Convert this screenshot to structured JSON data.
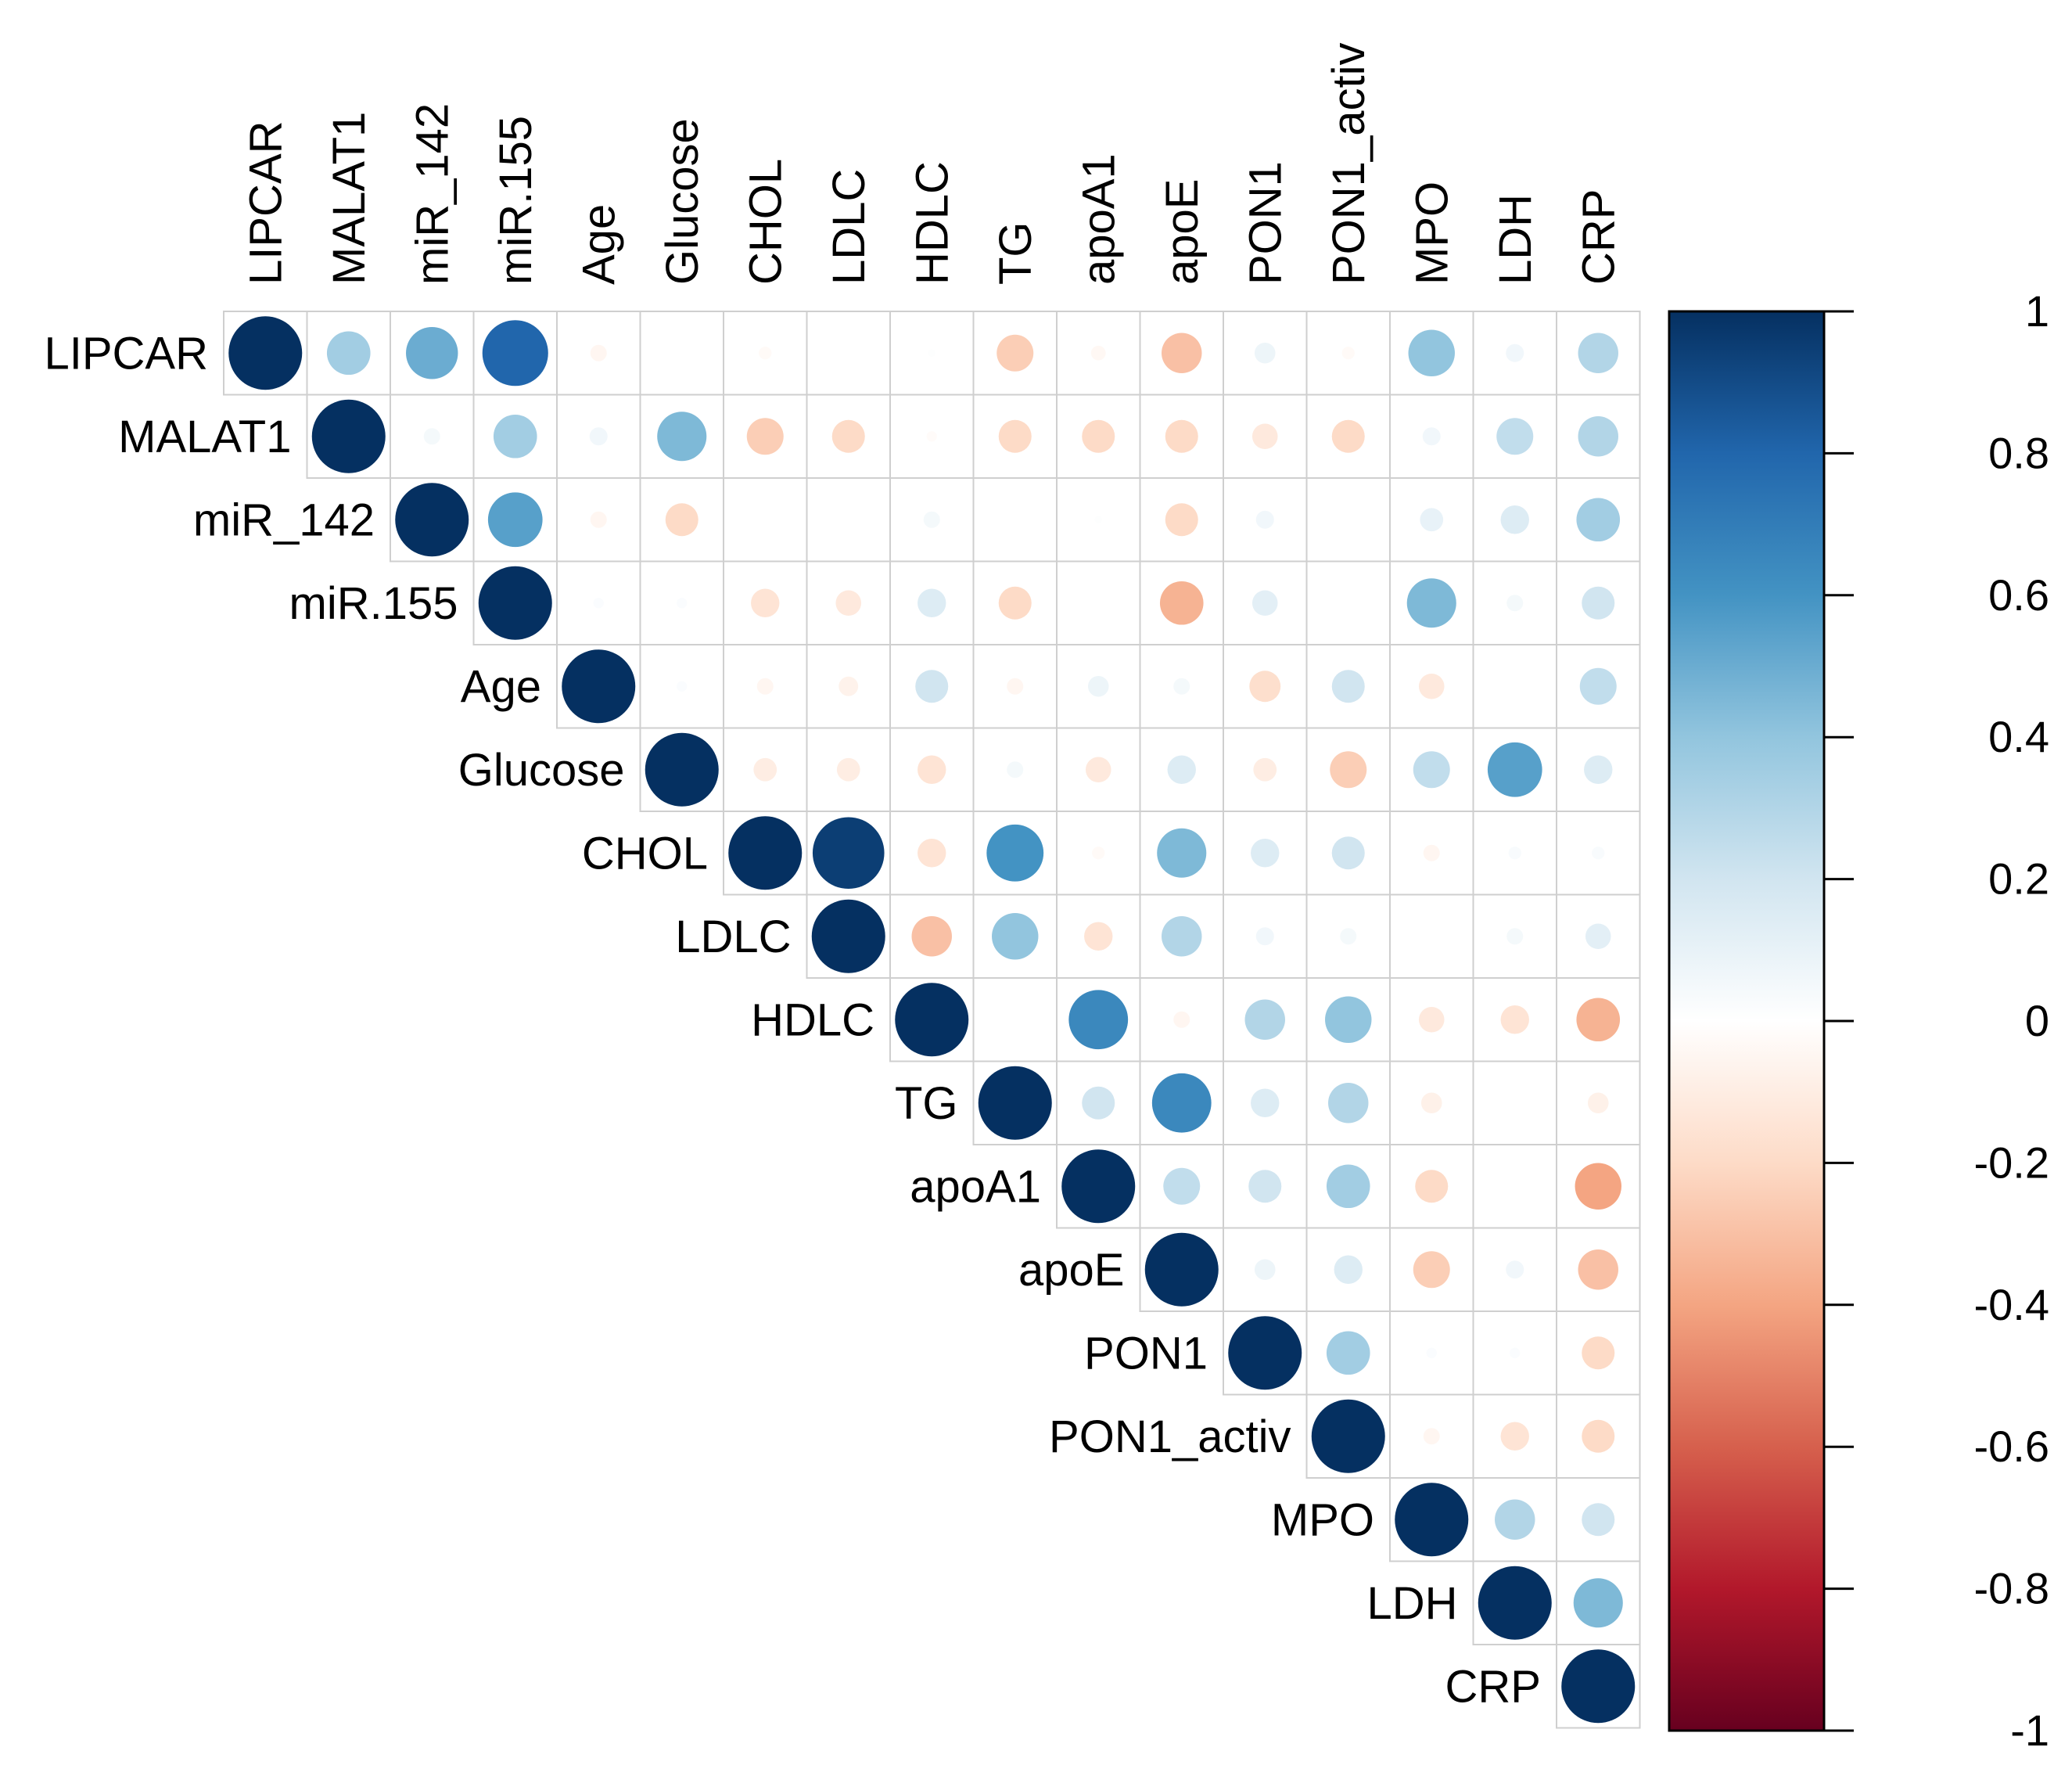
{
  "chart_data": {
    "type": "heatmap",
    "subtype": "correlation-circles-upper-triangle",
    "title": "",
    "variables": [
      "LIPCAR",
      "MALAT1",
      "miR_142",
      "miR.155",
      "Age",
      "Glucose",
      "CHOL",
      "LDLC",
      "HDLC",
      "TG",
      "apoA1",
      "apoE",
      "PON1",
      "PON1_activ",
      "MPO",
      "LDH",
      "CRP"
    ],
    "values": [
      [
        1.0,
        0.35,
        0.5,
        0.8,
        -0.05,
        0.0,
        -0.03,
        0.0,
        0.01,
        -0.25,
        -0.04,
        -0.3,
        0.08,
        -0.03,
        0.4,
        0.06,
        0.3
      ],
      [
        0.35,
        1.0,
        0.05,
        0.35,
        0.06,
        0.45,
        -0.25,
        -0.2,
        -0.02,
        -0.2,
        -0.2,
        -0.2,
        -0.12,
        -0.2,
        0.06,
        0.25,
        0.3
      ],
      [
        0.5,
        0.05,
        1.0,
        0.55,
        -0.05,
        -0.2,
        0.0,
        0.0,
        0.05,
        0.0,
        0.01,
        -0.2,
        0.06,
        0.0,
        0.1,
        0.15,
        0.35
      ],
      [
        0.8,
        0.35,
        0.55,
        1.0,
        0.02,
        0.02,
        -0.15,
        -0.12,
        0.15,
        -0.2,
        0.0,
        -0.35,
        0.12,
        0.0,
        0.45,
        0.05,
        0.2
      ],
      [
        -0.05,
        0.06,
        -0.05,
        0.02,
        1.0,
        0.02,
        -0.05,
        -0.07,
        0.2,
        -0.05,
        0.08,
        0.05,
        -0.18,
        0.2,
        -0.12,
        0.0,
        0.25
      ],
      [
        0.0,
        0.45,
        -0.2,
        0.02,
        0.02,
        1.0,
        -0.1,
        -0.1,
        -0.15,
        0.05,
        -0.12,
        0.15,
        -0.1,
        -0.25,
        0.25,
        0.55,
        0.15
      ],
      [
        -0.03,
        -0.25,
        0.0,
        -0.15,
        -0.05,
        -0.1,
        1.0,
        0.95,
        -0.15,
        0.6,
        -0.03,
        0.45,
        0.15,
        0.2,
        -0.05,
        0.03,
        0.03
      ],
      [
        0.0,
        -0.2,
        0.0,
        -0.12,
        -0.07,
        -0.1,
        0.95,
        1.0,
        -0.3,
        0.4,
        -0.15,
        0.3,
        0.06,
        0.05,
        0.0,
        0.05,
        0.12
      ],
      [
        0.01,
        -0.02,
        0.05,
        0.15,
        0.2,
        -0.15,
        -0.15,
        -0.3,
        1.0,
        0.0,
        0.65,
        -0.05,
        0.3,
        0.4,
        -0.12,
        -0.15,
        -0.35
      ],
      [
        -0.25,
        -0.2,
        0.0,
        -0.2,
        -0.05,
        0.05,
        0.6,
        0.4,
        0.0,
        1.0,
        0.2,
        0.65,
        0.15,
        0.3,
        -0.08,
        0.0,
        -0.08
      ],
      [
        -0.04,
        -0.2,
        0.01,
        0.0,
        0.08,
        -0.12,
        -0.03,
        -0.15,
        0.65,
        0.2,
        1.0,
        0.25,
        0.2,
        0.35,
        -0.2,
        0.0,
        -0.4
      ],
      [
        -0.3,
        -0.2,
        -0.2,
        -0.35,
        0.05,
        0.15,
        0.45,
        0.3,
        -0.05,
        0.65,
        0.25,
        1.0,
        0.08,
        0.15,
        -0.25,
        0.06,
        -0.3
      ],
      [
        0.08,
        -0.12,
        0.06,
        0.12,
        -0.18,
        -0.1,
        0.15,
        0.06,
        0.3,
        0.15,
        0.2,
        0.08,
        1.0,
        0.35,
        0.02,
        0.02,
        -0.2
      ],
      [
        -0.03,
        -0.2,
        0.0,
        0.0,
        0.2,
        -0.25,
        0.2,
        0.05,
        0.4,
        0.3,
        0.35,
        0.15,
        0.35,
        1.0,
        -0.05,
        -0.15,
        -0.2
      ],
      [
        0.4,
        0.06,
        0.1,
        0.45,
        -0.12,
        0.25,
        -0.05,
        0.0,
        -0.12,
        -0.08,
        -0.2,
        -0.25,
        0.02,
        -0.05,
        1.0,
        0.3,
        0.2
      ],
      [
        0.06,
        0.25,
        0.15,
        0.05,
        0.0,
        0.55,
        0.03,
        0.05,
        -0.15,
        0.0,
        0.0,
        0.06,
        0.02,
        -0.15,
        0.3,
        1.0,
        0.45
      ],
      [
        0.3,
        0.3,
        0.35,
        0.2,
        0.25,
        0.15,
        0.03,
        0.12,
        -0.35,
        -0.08,
        -0.4,
        -0.3,
        -0.2,
        -0.2,
        0.2,
        0.45,
        1.0
      ]
    ],
    "colorbar": {
      "range": [
        -1,
        1
      ],
      "ticks": [
        1,
        0.8,
        0.6,
        0.4,
        0.2,
        0,
        -0.2,
        -0.4,
        -0.6,
        -0.8,
        -1
      ],
      "tick_labels": [
        "1",
        "0.8",
        "0.6",
        "0.4",
        "0.2",
        "0",
        "-0.2",
        "-0.4",
        "-0.6",
        "-0.8",
        "-1"
      ],
      "colors": [
        "#67001F",
        "#B2182B",
        "#D6604D",
        "#F4A582",
        "#FDDBC7",
        "#FFFFFF",
        "#D1E5F0",
        "#92C5DE",
        "#4393C3",
        "#2166AC",
        "#053061"
      ]
    },
    "xlabel": "",
    "ylabel": "",
    "legend": "right"
  }
}
